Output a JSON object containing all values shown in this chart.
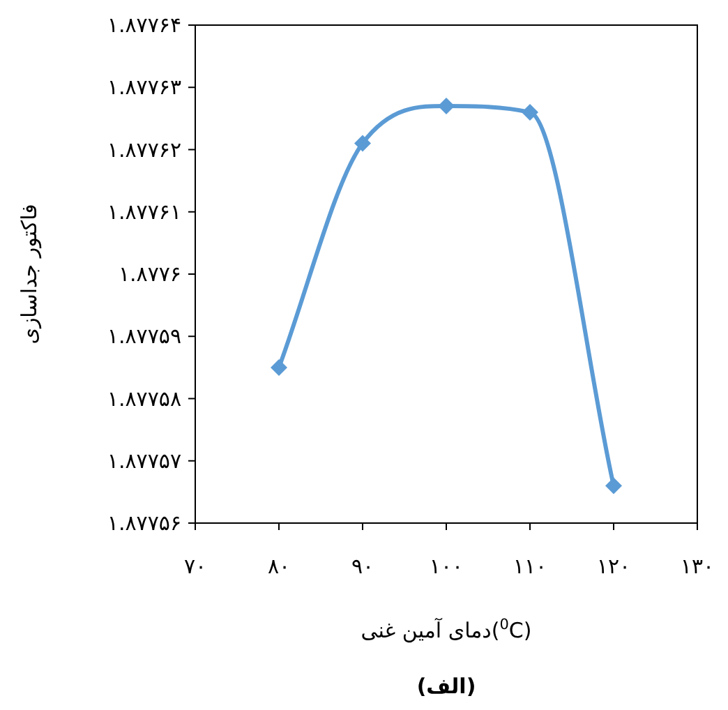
{
  "chart_data": {
    "type": "line",
    "xlabel": "دمای آمین غنی($^{0}$C)",
    "ylabel": "فاکتور جداسازی",
    "x": [
      80,
      90,
      100,
      110,
      120
    ],
    "series": [
      {
        "color": "#5b9bd5",
        "values": [
          1.877585,
          1.877621,
          1.877627,
          1.877626,
          1.877566
        ]
      }
    ],
    "marker": "diamond",
    "line_style": "solid",
    "grid": false,
    "xlim": [
      70,
      130
    ],
    "xticks": [
      {
        "value": 70,
        "label": "۷۰"
      },
      {
        "value": 80,
        "label": "۸۰"
      },
      {
        "value": 90,
        "label": "۹۰"
      },
      {
        "value": 100,
        "label": "۱۰۰"
      },
      {
        "value": 110,
        "label": "۱۱۰"
      },
      {
        "value": 120,
        "label": "۱۲۰"
      },
      {
        "value": 130,
        "label": "۱۳۰"
      }
    ],
    "ylim": [
      1.87756,
      1.87764
    ],
    "yticks": [
      {
        "value": 1.87756,
        "label": "۱.۸۷۷۵۶"
      },
      {
        "value": 1.87757,
        "label": "۱.۸۷۷۵۷"
      },
      {
        "value": 1.87758,
        "label": "۱.۸۷۷۵۸"
      },
      {
        "value": 1.87759,
        "label": "۱.۸۷۷۵۹"
      },
      {
        "value": 1.8776,
        "label": "۱.۸۷۷۶"
      },
      {
        "value": 1.87761,
        "label": "۱.۸۷۷۶۱"
      },
      {
        "value": 1.87762,
        "label": "۱.۸۷۷۶۲"
      },
      {
        "value": 1.87763,
        "label": "۱.۸۷۷۶۳"
      },
      {
        "value": 1.87764,
        "label": "۱.۸۷۷۶۴"
      }
    ],
    "annotations": [
      "(الف)"
    ]
  }
}
